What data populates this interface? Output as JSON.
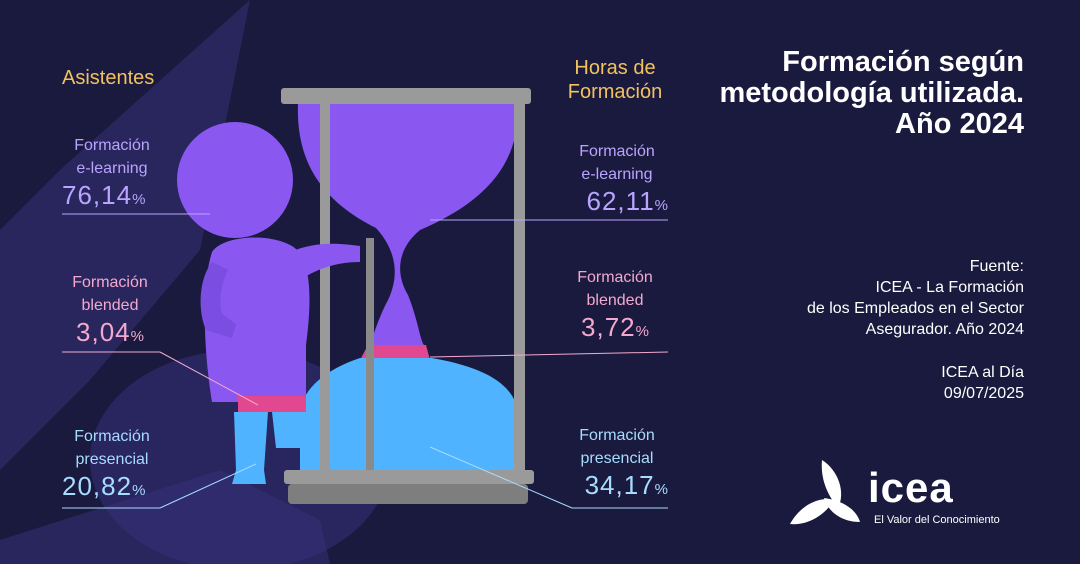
{
  "title": "Formación según metodología utilizada. Año 2024",
  "headers": {
    "asistentes": "Asistentes",
    "horas_line1": "Horas de",
    "horas_line2": "Formación"
  },
  "asistentes": [
    {
      "label_line1": "Formación",
      "label_line2": "e-learning",
      "value": "76,14",
      "unit": "%"
    },
    {
      "label_line1": "Formación",
      "label_line2": "blended",
      "value": "3,04",
      "unit": "%"
    },
    {
      "label_line1": "Formación",
      "label_line2": "presencial",
      "value": "20,82",
      "unit": "%"
    }
  ],
  "horas": [
    {
      "label_line1": "Formación",
      "label_line2": "e-learning",
      "value": "62,11",
      "unit": "%"
    },
    {
      "label_line1": "Formación",
      "label_line2": "blended",
      "value": "3,72",
      "unit": "%"
    },
    {
      "label_line1": "Formación",
      "label_line2": "presencial",
      "value": "34,17",
      "unit": "%"
    }
  ],
  "source": {
    "label": "Fuente:",
    "line1": "ICEA - La Formación",
    "line2": "de los Empleados en el Sector",
    "line3": "Asegurador. Año 2024",
    "publication": "ICEA al Día",
    "date": "09/07/2025"
  },
  "logo": {
    "word": "icea",
    "tagline": "El Valor del Conocimiento"
  },
  "colors": {
    "background": "#1a1a3e",
    "elearning": "#8a57f0",
    "blended": "#e2488f",
    "presencial": "#4fb3ff",
    "header": "#f2c25e",
    "frame": "#9a9a9a"
  }
}
